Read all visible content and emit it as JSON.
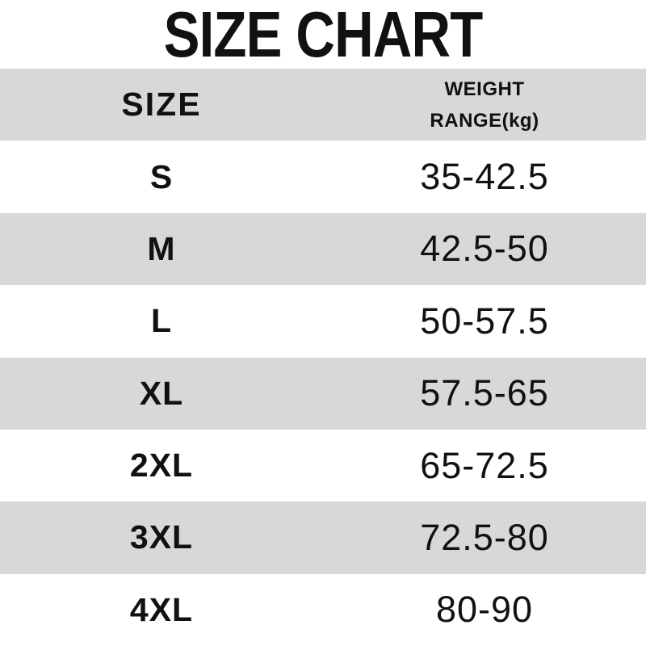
{
  "page_title": "SIZE CHART",
  "table": {
    "header": {
      "size_label": "SIZE",
      "weight_label_line1": "WEIGHT",
      "weight_label_line2": "RANGE(kg)"
    },
    "rows": [
      {
        "size": "S",
        "weight_range": "35-42.5"
      },
      {
        "size": "M",
        "weight_range": "42.5-50"
      },
      {
        "size": "L",
        "weight_range": "50-57.5"
      },
      {
        "size": "XL",
        "weight_range": "57.5-65"
      },
      {
        "size": "2XL",
        "weight_range": "65-72.5"
      },
      {
        "size": "3XL",
        "weight_range": "72.5-80"
      },
      {
        "size": "4XL",
        "weight_range": "80-90"
      }
    ]
  },
  "colors": {
    "alt_row_background": "#d8d8d8",
    "row_background": "#ffffff",
    "text_color": "#111111"
  },
  "chart_data": {
    "type": "table",
    "title": "SIZE CHART",
    "columns": [
      "SIZE",
      "WEIGHT RANGE(kg)"
    ],
    "rows": [
      [
        "S",
        "35-42.5"
      ],
      [
        "M",
        "42.5-50"
      ],
      [
        "L",
        "50-57.5"
      ],
      [
        "XL",
        "57.5-65"
      ],
      [
        "2XL",
        "65-72.5"
      ],
      [
        "3XL",
        "72.5-80"
      ],
      [
        "4XL",
        "80-90"
      ]
    ],
    "units": "kg"
  }
}
